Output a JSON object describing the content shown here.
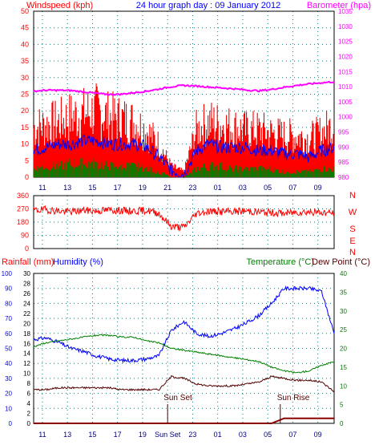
{
  "header": {
    "left_label": "Windspeed (kph)",
    "title": "24 hour graph day : 09 January 2012",
    "right_label": "Barometer (hpa)"
  },
  "colors": {
    "wind_gust": "#ff0000",
    "wind_avg": "#0000ff",
    "wind_low": "#008000",
    "barometer": "#ff00ff",
    "direction": "#ff0000",
    "humidity": "#0000ff",
    "temperature": "#008000",
    "dew_point": "#550000",
    "rainfall": "#8b0000",
    "grid": "#008080",
    "left_axis_text": "#ff0000",
    "right_axis_text": "#ff00ff",
    "blue_axis_text": "#0000ff",
    "green_axis_text": "#008000"
  },
  "chart_data": [
    {
      "type": "line",
      "panel": "wind-barometer",
      "title": "24 hour graph day : 09 January 2012",
      "ylabel": "Windspeed (kph)",
      "y2label": "Barometer (hpa)",
      "x_tick_labels": [
        "11",
        "13",
        "15",
        "17",
        "19",
        "21",
        "23",
        "01",
        "03",
        "05",
        "07",
        "09"
      ],
      "ylim": [
        0,
        50
      ],
      "y_ticks": [
        0,
        5,
        10,
        15,
        20,
        25,
        30,
        35,
        40,
        45,
        50
      ],
      "y2lim": [
        980,
        1035
      ],
      "y2_ticks": [
        980,
        985,
        990,
        995,
        1000,
        1005,
        1010,
        1015,
        1020,
        1025,
        1030,
        1035
      ],
      "grid": true,
      "hours_from_start": [
        0,
        1,
        2,
        3,
        4,
        5,
        6,
        7,
        8,
        9,
        10,
        11,
        12,
        13,
        14,
        15,
        16,
        17,
        18,
        19,
        20,
        21,
        22,
        23,
        24
      ],
      "series": [
        {
          "values": [
            18,
            19,
            20,
            22,
            23,
            24,
            22,
            21,
            20,
            17,
            12,
            4,
            2,
            17,
            20,
            19,
            18,
            17,
            17,
            16,
            15,
            15,
            14,
            16,
            19
          ]
        },
        {
          "values": [
            8,
            9,
            10,
            10,
            11,
            11,
            10,
            10,
            10,
            9,
            6,
            2,
            1,
            8,
            10,
            9,
            9,
            9,
            8,
            8,
            7,
            7,
            6,
            8,
            9
          ]
        },
        {
          "values": [
            3,
            4,
            4,
            5,
            5,
            5,
            4,
            4,
            4,
            3,
            2,
            0,
            0,
            3,
            4,
            4,
            3,
            3,
            3,
            3,
            2,
            2,
            2,
            3,
            3
          ]
        },
        {
          "axis": "y2",
          "values": [
            1008.5,
            1008.8,
            1008.8,
            1008.7,
            1008.3,
            1007.8,
            1007.4,
            1007.5,
            1008.0,
            1008.5,
            1009.2,
            1010.0,
            1010.4,
            1010.2,
            1009.9,
            1009.6,
            1009.3,
            1008.9,
            1008.6,
            1009.1,
            1009.8,
            1010.4,
            1010.9,
            1011.3,
            1011.6
          ]
        }
      ]
    },
    {
      "type": "line",
      "panel": "wind-direction",
      "ylim": [
        0,
        360
      ],
      "y_ticks": [
        0,
        90,
        180,
        270,
        360
      ],
      "compass_labels": [
        "N",
        "W",
        "S",
        "E",
        "N"
      ],
      "grid": true,
      "hours_from_start": [
        0,
        1,
        2,
        3,
        4,
        5,
        6,
        7,
        8,
        9,
        10,
        11,
        12,
        13,
        14,
        15,
        16,
        17,
        18,
        19,
        20,
        21,
        22,
        23,
        24
      ],
      "series": [
        {
          "values": [
            260,
            265,
            255,
            250,
            260,
            255,
            262,
            258,
            255,
            260,
            240,
            150,
            145,
            240,
            255,
            250,
            252,
            255,
            248,
            245,
            240,
            248,
            250,
            245,
            242
          ]
        }
      ]
    },
    {
      "type": "line",
      "panel": "temp-humidity-rain",
      "left_outer_label": "Rainfall (mm)",
      "left_inner_label": "Humidity (%)",
      "right_label": "Temperature (°C)",
      "right_label_2": "Dew Point (°C)",
      "humidity_ylim": [
        0,
        100
      ],
      "humidity_ticks": [
        0,
        10,
        20,
        30,
        40,
        50,
        60,
        70,
        80,
        90,
        100
      ],
      "rain_ylim": [
        0,
        30
      ],
      "rain_ticks": [
        0,
        2,
        4,
        6,
        8,
        10,
        12,
        14,
        16,
        18,
        20,
        22,
        24,
        26,
        28,
        30
      ],
      "temp_ylim": [
        0,
        40
      ],
      "temp_ticks": [
        0,
        5,
        10,
        15,
        20,
        25,
        30,
        35,
        40
      ],
      "annotations": [
        "Sun Set",
        "Sun Rise"
      ],
      "x_tick_labels": [
        "11",
        "13",
        "15",
        "17",
        "19",
        "Sun Set",
        "23",
        "01",
        "03",
        "05",
        "07",
        "09"
      ],
      "grid": true,
      "hours_from_start": [
        0,
        1,
        2,
        3,
        4,
        5,
        6,
        7,
        8,
        9,
        10,
        11,
        12,
        13,
        14,
        15,
        16,
        17,
        18,
        19,
        20,
        21,
        22,
        23,
        24
      ],
      "series": [
        {
          "axis": "humidity",
          "values": [
            56,
            57,
            54,
            50,
            48,
            45,
            43,
            42,
            42,
            43,
            45,
            62,
            68,
            60,
            58,
            60,
            63,
            67,
            72,
            80,
            90,
            90,
            90,
            88,
            60
          ]
        },
        {
          "axis": "temperature",
          "values": [
            20.5,
            21.5,
            22.0,
            22.5,
            23.0,
            23.5,
            23.5,
            23.0,
            23.0,
            22.0,
            21.5,
            20.0,
            19.5,
            19.0,
            18.5,
            18.0,
            17.5,
            17.0,
            16.5,
            15.0,
            14.0,
            13.5,
            14.0,
            15.5,
            16.5
          ]
        },
        {
          "axis": "temperature",
          "values": [
            9.0,
            9.0,
            9.5,
            9.5,
            9.5,
            9.5,
            9.5,
            9.0,
            9.0,
            9.0,
            9.0,
            12.5,
            12.0,
            10.5,
            10.0,
            10.0,
            10.0,
            10.5,
            11.0,
            12.5,
            12.0,
            11.5,
            11.5,
            11.0,
            8.5
          ]
        },
        {
          "axis": "rain",
          "values": [
            0,
            0,
            0,
            0,
            0,
            0,
            0,
            0,
            0,
            0,
            0,
            0,
            0,
            0,
            0,
            0,
            0,
            0,
            0,
            0,
            1,
            1,
            1,
            1,
            1
          ]
        }
      ]
    }
  ]
}
